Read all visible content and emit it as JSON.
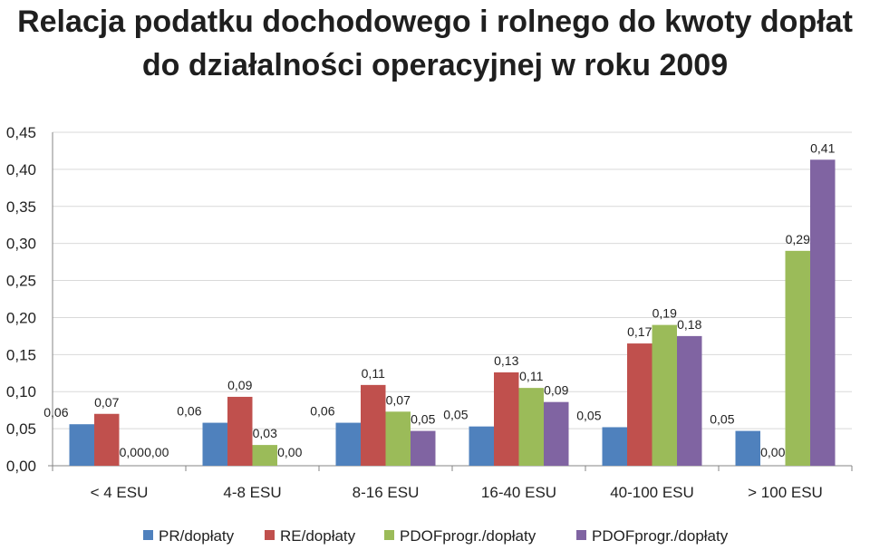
{
  "chart_data": {
    "type": "bar",
    "title": "Relacja podatku dochodowego i rolnego do kwoty dopłat do działalności operacyjnej w roku 2009",
    "categories": [
      "< 4 ESU",
      "4-8 ESU",
      "8-16 ESU",
      "16-40 ESU",
      "40-100 ESU",
      "> 100 ESU"
    ],
    "series": [
      {
        "name": "PR/dopłaty",
        "color": "#4f81bd",
        "values": [
          0.056,
          0.058,
          0.058,
          0.053,
          0.052,
          0.047
        ],
        "labels": [
          "0,06",
          "0,06",
          "0,06",
          "0,05",
          "0,05",
          "0,05"
        ]
      },
      {
        "name": "RE/dopłaty",
        "color": "#c0504d",
        "values": [
          0.07,
          0.093,
          0.109,
          0.126,
          0.165,
          0.0
        ],
        "labels": [
          "0,07",
          "0,09",
          "0,11",
          "0,13",
          "0,17",
          "0,00"
        ]
      },
      {
        "name": "PDOFprogr./dopłaty",
        "color": "#9bbb59",
        "values": [
          0.0,
          0.028,
          0.073,
          0.105,
          0.19,
          0.29
        ],
        "labels": [
          "0,00",
          "0,03",
          "0,07",
          "0,11",
          "0,19",
          "0,29"
        ]
      },
      {
        "name": "PDOFprogr./dopłaty",
        "color": "#8064a2",
        "values": [
          0.0,
          0.0,
          0.047,
          0.086,
          0.175,
          0.413
        ],
        "labels": [
          "0,00",
          "0,00",
          "0,05",
          "0,09",
          "0,18",
          "0,41"
        ]
      }
    ],
    "ylim": [
      0,
      0.45
    ],
    "yticks": [
      "0,00",
      "0,05",
      "0,10",
      "0,15",
      "0,20",
      "0,25",
      "0,30",
      "0,35",
      "0,40",
      "0,45"
    ],
    "grid": true,
    "legend": "bottom"
  }
}
